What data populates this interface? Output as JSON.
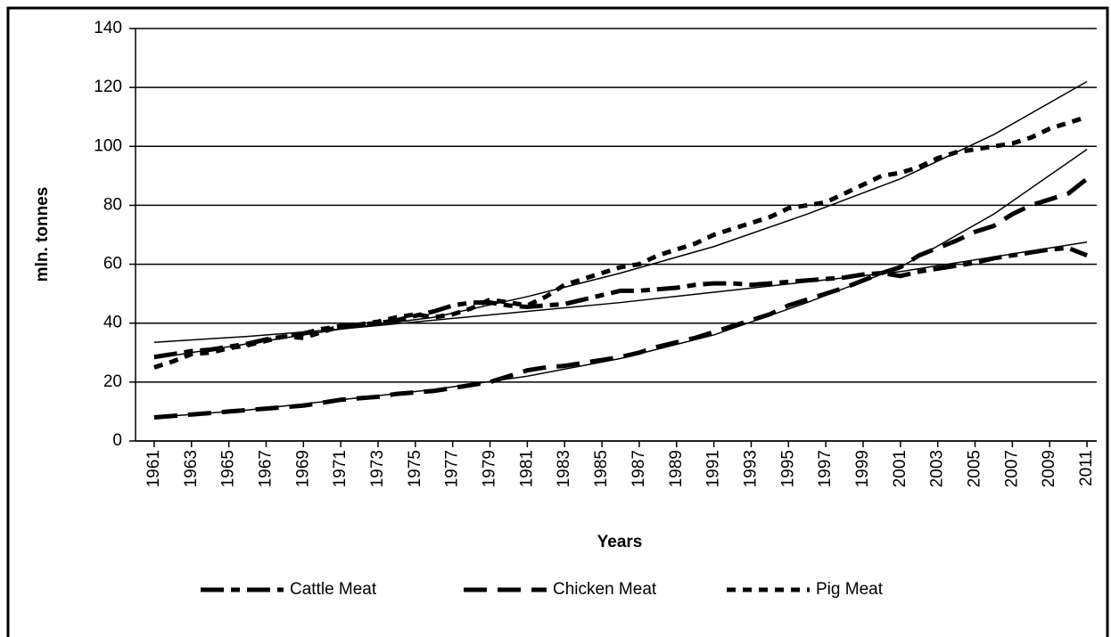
{
  "chart_data": {
    "type": "line",
    "y_label": "mln. tonnes",
    "x_label": "Years",
    "x": [
      1961,
      1962,
      1963,
      1964,
      1965,
      1966,
      1967,
      1968,
      1969,
      1970,
      1971,
      1972,
      1973,
      1974,
      1975,
      1976,
      1977,
      1978,
      1979,
      1980,
      1981,
      1982,
      1983,
      1984,
      1985,
      1986,
      1987,
      1988,
      1989,
      1990,
      1991,
      1992,
      1993,
      1994,
      1995,
      1996,
      1997,
      1998,
      1999,
      2000,
      2001,
      2002,
      2003,
      2004,
      2005,
      2006,
      2007,
      2008,
      2009,
      2010,
      2011
    ],
    "xlim": [
      1960,
      2012
    ],
    "xticks": [
      1961,
      1963,
      1965,
      1967,
      1969,
      1971,
      1973,
      1975,
      1977,
      1979,
      1981,
      1983,
      1985,
      1987,
      1989,
      1991,
      1993,
      1995,
      1997,
      1999,
      2001,
      2003,
      2005,
      2007,
      2009,
      2011
    ],
    "ylim": [
      0,
      140
    ],
    "yticks": [
      0,
      20,
      40,
      60,
      80,
      100,
      120,
      140
    ],
    "grid": true,
    "legend": "bottom",
    "series": [
      {
        "name": "Cattle Meat",
        "color": "#000000",
        "values": [
          28.5,
          29.5,
          30.5,
          31,
          32,
          33,
          34.5,
          35.5,
          36.5,
          38,
          39,
          39.5,
          40,
          41,
          42.5,
          44,
          46,
          47,
          47,
          46,
          45.5,
          46,
          46.5,
          48,
          49.5,
          51,
          51,
          51.5,
          52,
          53,
          53.5,
          53.5,
          53,
          53.5,
          54,
          54.5,
          55,
          55.5,
          56.5,
          57,
          56,
          57.5,
          58.5,
          59.5,
          60.5,
          62,
          63,
          64,
          65,
          65.5,
          63
        ],
        "trendline": {
          "x": [
            1961,
            1966,
            1971,
            1976,
            1981,
            1986,
            1991,
            1996,
            2001,
            2006,
            2011
          ],
          "values": [
            33.5,
            35.5,
            38,
            41,
            44,
            47,
            50.5,
            54,
            57.5,
            62.5,
            67.5
          ]
        }
      },
      {
        "name": "Chicken Meat",
        "color": "#000000",
        "values": [
          8,
          8.5,
          9,
          9.5,
          10,
          10.5,
          11,
          11.5,
          12,
          13,
          14,
          14.5,
          15,
          16,
          16.5,
          17,
          18,
          19,
          20,
          22,
          24,
          25,
          25.5,
          26.5,
          27.5,
          28.5,
          30,
          32,
          33.5,
          35,
          37,
          39,
          41,
          43,
          46,
          48,
          50,
          52,
          54.5,
          57,
          59,
          63,
          65.5,
          68,
          71,
          73,
          77,
          80,
          82,
          84,
          89
        ],
        "trendline": {
          "x": [
            1961,
            1966,
            1971,
            1976,
            1981,
            1986,
            1991,
            1996,
            2001,
            2006,
            2011
          ],
          "values": [
            8,
            10.5,
            14,
            17.5,
            22,
            28,
            36,
            47,
            59,
            77,
            99
          ]
        }
      },
      {
        "name": "Pig Meat",
        "color": "#000000",
        "values": [
          25,
          27,
          29.5,
          30,
          31.5,
          32.5,
          34,
          35.5,
          35,
          37,
          39,
          39.5,
          40.5,
          42,
          43,
          42,
          43,
          45,
          48,
          47,
          46,
          49,
          53,
          55,
          57,
          59,
          60,
          63,
          65,
          67,
          70,
          72,
          74,
          76,
          79,
          80,
          81,
          84,
          87,
          90,
          91,
          93,
          96,
          98,
          99,
          100,
          101,
          103,
          106,
          108,
          110
        ],
        "trendline": {
          "x": [
            1961,
            1966,
            1971,
            1976,
            1981,
            1986,
            1991,
            1996,
            2001,
            2006,
            2011
          ],
          "values": [
            28,
            33,
            38,
            42,
            49,
            57,
            66,
            77,
            89,
            104,
            122
          ]
        }
      }
    ]
  }
}
